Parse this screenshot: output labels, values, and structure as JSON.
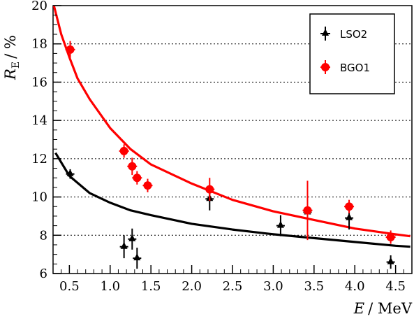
{
  "chart_data": {
    "type": "scatter",
    "xlabel": "E / MeV",
    "xlabel_var": "E",
    "xlabel_unit": "/ MeV",
    "ylabel": "R_E / %",
    "ylabel_var": "R",
    "ylabel_sub": "E",
    "ylabel_unit": "/ %",
    "xlim": [
      0.3,
      4.7
    ],
    "ylim": [
      6,
      20
    ],
    "xticks": [
      "0.5",
      "1.0",
      "1.5",
      "2.0",
      "2.5",
      "3.0",
      "3.5",
      "4.0",
      "4.5"
    ],
    "yticks": [
      "6",
      "8",
      "10",
      "12",
      "14",
      "16",
      "18",
      "20"
    ],
    "grid": "horizontal dotted",
    "legend_position": "top-right",
    "series": [
      {
        "name": "LSO2",
        "color": "#000000",
        "marker": "triangle",
        "points": [
          {
            "x": 0.51,
            "y": 11.2,
            "err": 0.25
          },
          {
            "x": 1.17,
            "y": 7.4,
            "err": 0.6
          },
          {
            "x": 1.27,
            "y": 7.8,
            "err": 0.55
          },
          {
            "x": 1.33,
            "y": 6.8,
            "err": 0.55
          },
          {
            "x": 2.22,
            "y": 9.9,
            "err": 0.6
          },
          {
            "x": 3.09,
            "y": 8.5,
            "err": 0.55
          },
          {
            "x": 3.42,
            "y": 9.2,
            "err": 0.3
          },
          {
            "x": 3.93,
            "y": 8.9,
            "err": 0.6
          },
          {
            "x": 4.44,
            "y": 6.6,
            "err": 0.35
          }
        ],
        "fit": [
          [
            0.33,
            12.3
          ],
          [
            0.5,
            11.1
          ],
          [
            0.75,
            10.2
          ],
          [
            1.0,
            9.7
          ],
          [
            1.25,
            9.3
          ],
          [
            1.5,
            9.05
          ],
          [
            2.0,
            8.6
          ],
          [
            2.5,
            8.3
          ],
          [
            3.0,
            8.05
          ],
          [
            3.5,
            7.85
          ],
          [
            4.0,
            7.65
          ],
          [
            4.5,
            7.45
          ],
          [
            4.68,
            7.4
          ]
        ]
      },
      {
        "name": "BGO1",
        "color": "#ff0000",
        "marker": "circle",
        "points": [
          {
            "x": 0.51,
            "y": 17.7,
            "err": 0.45
          },
          {
            "x": 1.17,
            "y": 12.4,
            "err": 0.35
          },
          {
            "x": 1.27,
            "y": 11.6,
            "err": 0.45
          },
          {
            "x": 1.33,
            "y": 11.0,
            "err": 0.35
          },
          {
            "x": 1.46,
            "y": 10.6,
            "err": 0.35
          },
          {
            "x": 2.22,
            "y": 10.4,
            "err": 0.6
          },
          {
            "x": 3.42,
            "y": 9.3,
            "err": 1.55
          },
          {
            "x": 3.93,
            "y": 9.5,
            "err": 0.35
          },
          {
            "x": 4.44,
            "y": 7.9,
            "err": 0.35
          }
        ],
        "fit": [
          [
            0.31,
            20.0
          ],
          [
            0.4,
            18.5
          ],
          [
            0.5,
            17.3
          ],
          [
            0.6,
            16.2
          ],
          [
            0.75,
            15.1
          ],
          [
            1.0,
            13.6
          ],
          [
            1.25,
            12.5
          ],
          [
            1.5,
            11.7
          ],
          [
            2.0,
            10.7
          ],
          [
            2.5,
            9.85
          ],
          [
            3.0,
            9.25
          ],
          [
            3.5,
            8.8
          ],
          [
            4.0,
            8.35
          ],
          [
            4.5,
            8.05
          ],
          [
            4.68,
            7.95
          ]
        ]
      }
    ]
  }
}
